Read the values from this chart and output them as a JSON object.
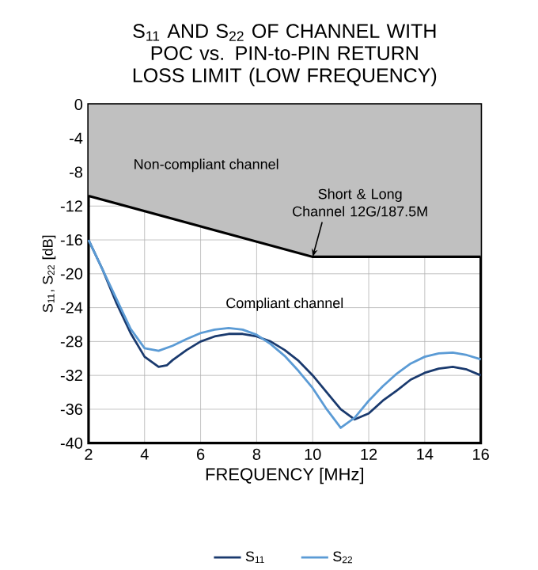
{
  "chart_data": {
    "type": "line",
    "title": "S$_{11}$ AND S$_{22}$ OF CHANNEL WITH POC vs. PIN-to-PIN RETURN LOSS LIMIT (LOW FREQUENCY)",
    "xlabel": "FREQUENCY [MHz]",
    "ylabel": "S$_{11}$, S$_{22}$ [dB]",
    "xlim": [
      2,
      16
    ],
    "xticks": [
      2,
      4,
      6,
      8,
      10,
      12,
      14,
      16
    ],
    "ylim": [
      -40,
      0
    ],
    "yticks": [
      -40,
      -36,
      -32,
      -28,
      -24,
      -20,
      -16,
      -12,
      -8,
      -4,
      0
    ],
    "grid": true,
    "legend": "bottom",
    "marker": "none",
    "line_style": "solid",
    "series": [
      {
        "type": "area",
        "color": "#c0c0c0",
        "x": [
          2,
          10,
          16
        ],
        "values": [
          -10.8,
          -18,
          -18
        ]
      },
      {
        "name": "S$_{11}$",
        "color": "#1a3a6e",
        "x": [
          2,
          2.5,
          3,
          3.5,
          4,
          4.5,
          4.8,
          5,
          5.5,
          6,
          6.5,
          7,
          7.5,
          8,
          8.5,
          9,
          9.5,
          10,
          10.5,
          11,
          11.5,
          12,
          12.5,
          13,
          13.5,
          14,
          14.5,
          15,
          15.5,
          16
        ],
        "values": [
          -16,
          -19.5,
          -23.5,
          -27,
          -29.8,
          -31,
          -30.8,
          -30.2,
          -29,
          -28,
          -27.4,
          -27.1,
          -27.1,
          -27.4,
          -28,
          -29,
          -30.3,
          -32,
          -34,
          -36,
          -37.2,
          -36.5,
          -35,
          -33.8,
          -32.5,
          -31.7,
          -31.2,
          -31,
          -31.3,
          -32
        ]
      },
      {
        "name": "S$_{22}$",
        "color": "#5b9bd5",
        "x": [
          2,
          3,
          3.5,
          4,
          4.5,
          5,
          5.5,
          6,
          6.5,
          7,
          7.5,
          8,
          8.5,
          9,
          9.5,
          10,
          10.5,
          11,
          11.5,
          12,
          12.5,
          13,
          13.5,
          14,
          14.5,
          15,
          15.5,
          16
        ],
        "values": [
          -16,
          -23,
          -26.5,
          -28.8,
          -29.1,
          -28.5,
          -27.7,
          -27,
          -26.6,
          -26.4,
          -26.6,
          -27.2,
          -28.3,
          -29.7,
          -31.5,
          -33.5,
          -36,
          -38.2,
          -37,
          -35,
          -33.3,
          -31.8,
          -30.6,
          -29.8,
          -29.4,
          -29.3,
          -29.6,
          -30.1
        ]
      }
    ],
    "annotations": [
      "Non-compliant channel",
      {
        "text": "Short & Long Channel 12G/187.5M",
        "x": 10,
        "y": -18
      },
      "Compliant channel"
    ]
  }
}
